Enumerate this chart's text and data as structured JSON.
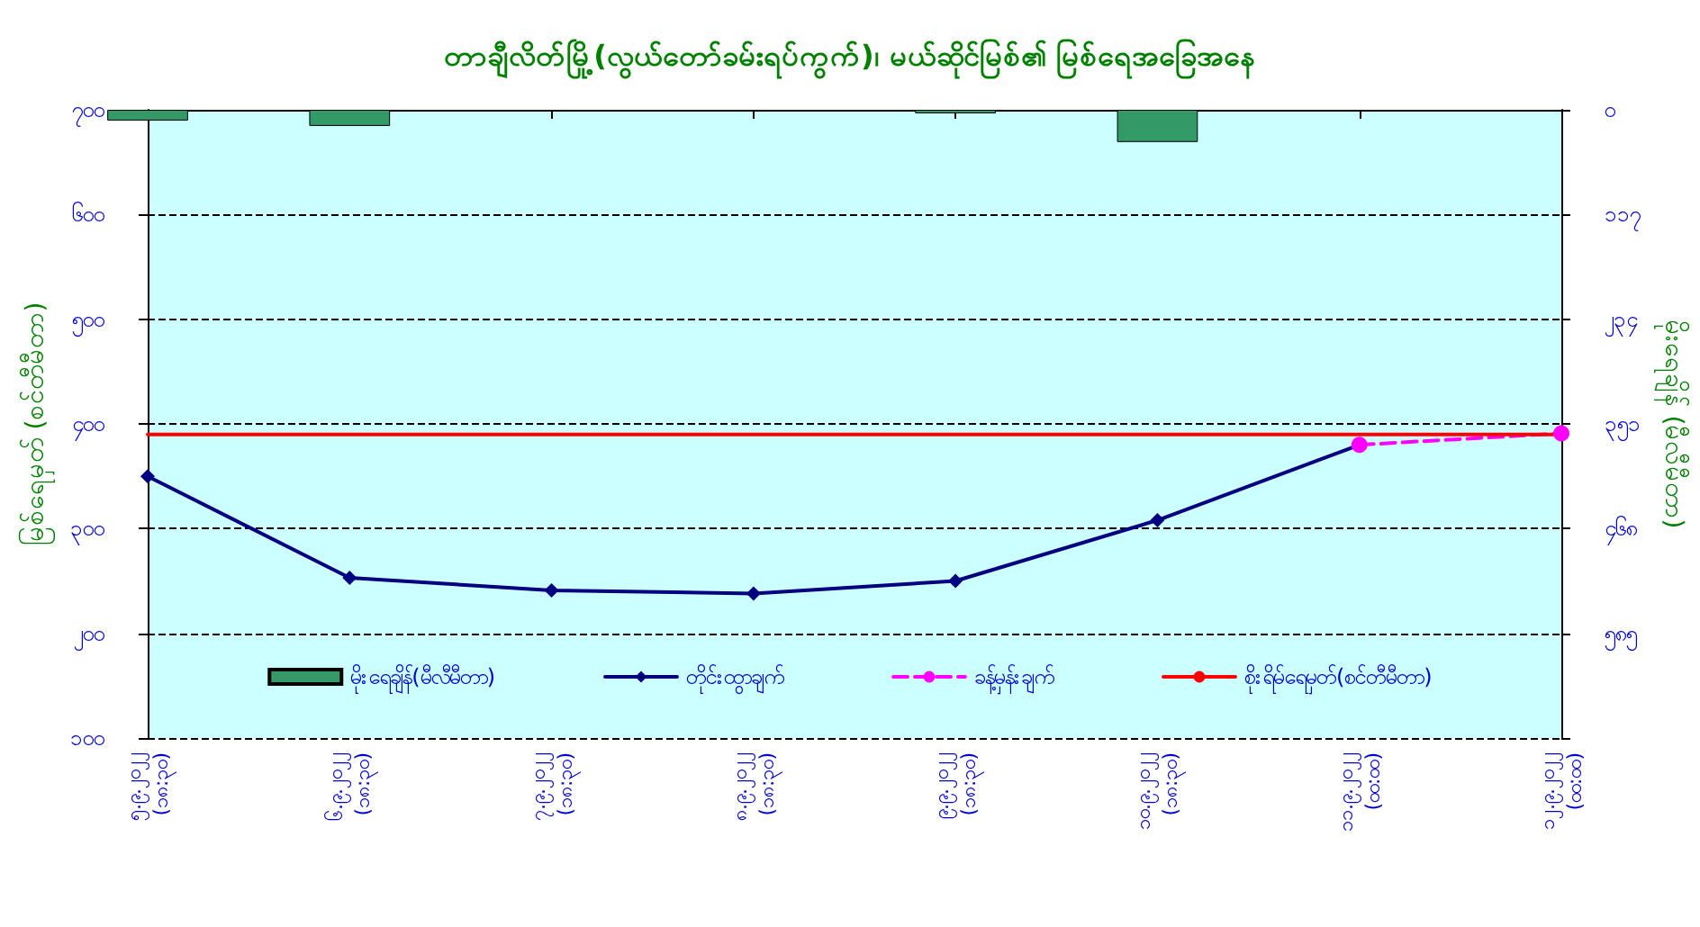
{
  "chart_data": {
    "type": "line",
    "title": "တာချီလိတ်မြို့(လွယ်တော်ခမ်းရပ်ကွက်)၊ မယ်ဆိုင်မြစ်၏ မြစ်ရေအခြေအနေ",
    "ylabel": "မြစ်ရေမှတ် (စင်တီမီတာ)",
    "y2label": "မိုးရေချိန် (မီလီမီတာ)",
    "categories": [
      "၅.၉.၂၀၂၂\n(၁၈:၃၀)",
      "၆.၉.၂၀၂၂\n(၁၈:၃၀)",
      "၇.၉.၂၀၂၂\n(၁၈:၃၀)",
      "၈.၉.၂၀၂၂\n(၁၈:၃၀)",
      "၉.၉.၂၀၂၂\n(၁၈:၃၀)",
      "၁၀.၉.၂၀၂၂\n(၁၈:၃၀)",
      "၁၁.၉.၂၀၂၂\n(၀၀:၀၀)",
      "၁၂.၉.၂၀၂၂\n(၀၀:၀၀)"
    ],
    "series": [
      {
        "name": "မိုးရေချိန်(မီလီမီတာ)",
        "type": "bar",
        "axis": "y2",
        "color": "#339966",
        "values": [
          12,
          18,
          null,
          null,
          4,
          36,
          null,
          null
        ]
      },
      {
        "name": "တိုင်းထွာချက်",
        "type": "line",
        "color": "#000080",
        "marker": "diamond",
        "line_style": "solid",
        "values": [
          350,
          253,
          241,
          238,
          250,
          308,
          380,
          null
        ]
      },
      {
        "name": "ခန့်မှန်းချက်",
        "type": "line",
        "color": "#ff00ff",
        "marker": "circle",
        "line_style": "dashed",
        "values": [
          null,
          null,
          null,
          null,
          null,
          null,
          380,
          391
        ]
      },
      {
        "name": "စိုးရိမ်ရေမှတ်(စင်တီမီတာ)",
        "type": "line",
        "color": "#ff0000",
        "marker": "none",
        "line_style": "solid",
        "values": [
          390,
          390,
          390,
          390,
          390,
          390,
          390,
          390
        ]
      }
    ],
    "ylim": [
      100,
      700
    ],
    "yticks": [
      {
        "value": 100,
        "label": "၁၀၀"
      },
      {
        "value": 200,
        "label": "၂၀၀"
      },
      {
        "value": 300,
        "label": "၃၀၀"
      },
      {
        "value": 400,
        "label": "၄၀၀"
      },
      {
        "value": 500,
        "label": "၅၀၀"
      },
      {
        "value": 600,
        "label": "၆၀၀"
      },
      {
        "value": 700,
        "label": "၇၀၀"
      }
    ],
    "y2lim": [
      702,
      0
    ],
    "y2ticks": [
      {
        "value": 0,
        "label": "၀"
      },
      {
        "value": 117,
        "label": "၁၁၇"
      },
      {
        "value": 234,
        "label": "၂၃၄"
      },
      {
        "value": 351,
        "label": "၃၅၁"
      },
      {
        "value": 468,
        "label": "၄၆၈"
      },
      {
        "value": 585,
        "label": "၅၈၅"
      },
      {
        "value": 702,
        "label": null
      }
    ],
    "grid": "y",
    "legend": "bottom"
  }
}
